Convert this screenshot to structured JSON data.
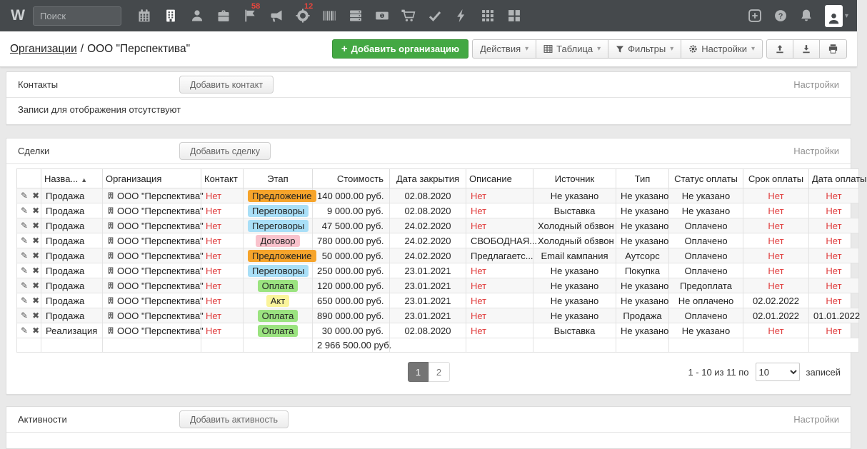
{
  "navbar": {
    "logo": "W",
    "search_placeholder": "Поиск",
    "modules": [
      {
        "name": "calendar",
        "icon": "calendar-icon"
      },
      {
        "name": "organizations",
        "icon": "building-icon",
        "active": true
      },
      {
        "name": "contacts",
        "icon": "person-icon"
      },
      {
        "name": "deals",
        "icon": "briefcase-icon"
      },
      {
        "name": "flags",
        "icon": "flag-icon",
        "badge": "58"
      },
      {
        "name": "marketing",
        "icon": "megaphone-icon"
      },
      {
        "name": "support",
        "icon": "helm-icon",
        "badge": "12"
      },
      {
        "name": "products",
        "icon": "barcode-icon"
      },
      {
        "name": "warehouse",
        "icon": "server-icon"
      },
      {
        "name": "finance",
        "icon": "banknote-icon"
      },
      {
        "name": "orders",
        "icon": "cart-icon"
      },
      {
        "name": "tasks",
        "icon": "check-icon"
      },
      {
        "name": "activity",
        "icon": "bolt-icon"
      },
      {
        "name": "apps",
        "icon": "grid-icon"
      },
      {
        "name": "dashboard",
        "icon": "layout-icon"
      }
    ]
  },
  "toolbar": {
    "breadcrumb": {
      "section": "Организации",
      "separator": "/",
      "current": "ООО \"Перспектива\""
    },
    "add_plus": "+",
    "add_organization_label": "Добавить организацию",
    "menus": [
      {
        "name": "actions-menu",
        "label": "Действия"
      },
      {
        "name": "table-menu",
        "label": "Таблица",
        "icon": "table-icon"
      },
      {
        "name": "filters-menu",
        "label": "Фильтры",
        "icon": "funnel-icon"
      },
      {
        "name": "settings-menu",
        "label": "Настройки",
        "icon": "gear-icon"
      }
    ],
    "icon_buttons": [
      {
        "name": "upload-button",
        "icon": "upload-icon"
      },
      {
        "name": "download-button",
        "icon": "download-icon"
      },
      {
        "name": "print-button",
        "icon": "printer-icon"
      }
    ]
  },
  "contacts": {
    "title": "Контакты",
    "add_button": "Добавить контакт",
    "settings_link": "Настройки",
    "empty_text": "Записи для отображения отсутствуют"
  },
  "deals": {
    "title": "Сделки",
    "add_button": "Добавить сделку",
    "settings_link": "Настройки",
    "table": {
      "columns": [
        {
          "label": ""
        },
        {
          "label": "Назва...",
          "sorted": "asc"
        },
        {
          "label": "Организация"
        },
        {
          "label": "Контакт"
        },
        {
          "label": "Этап"
        },
        {
          "label": "Стоимость"
        },
        {
          "label": "Дата закрытия"
        },
        {
          "label": "Описание"
        },
        {
          "label": "Источник"
        },
        {
          "label": "Тип"
        },
        {
          "label": "Статус оплаты"
        },
        {
          "label": "Срок оплаты"
        },
        {
          "label": "Дата оплаты"
        }
      ],
      "rows": [
        {
          "name": "Продажа",
          "org": "ООО \"Перспектива\"",
          "contact": "Нет",
          "stage": "Предложение",
          "stage_color": "stage_orange",
          "cost": "140 000.00 руб.",
          "close_date": "02.08.2020",
          "description": "Нет",
          "description_empty": true,
          "source": "Не указано",
          "type": "Не указано",
          "payment_status": "Не указано",
          "payment_due": "Нет",
          "payment_due_empty": true,
          "payment_date": "Нет",
          "payment_date_empty": true
        },
        {
          "name": "Продажа",
          "org": "ООО \"Перспектива\"",
          "contact": "Нет",
          "stage": "Переговоры",
          "stage_color": "stage_blue",
          "cost": "9 000.00 руб.",
          "close_date": "02.08.2020",
          "description": "Нет",
          "description_empty": true,
          "source": "Выставка",
          "type": "Не указано",
          "payment_status": "Не указано",
          "payment_due": "Нет",
          "payment_due_empty": true,
          "payment_date": "Нет",
          "payment_date_empty": true
        },
        {
          "name": "Продажа",
          "org": "ООО \"Перспектива\"",
          "contact": "Нет",
          "stage": "Переговоры",
          "stage_color": "stage_blue",
          "cost": "47 500.00 руб.",
          "close_date": "24.02.2020",
          "description": "Нет",
          "description_empty": true,
          "source": "Холодный обзвон",
          "type": "Не указано",
          "payment_status": "Оплачено",
          "payment_due": "Нет",
          "payment_due_empty": true,
          "payment_date": "Нет",
          "payment_date_empty": true
        },
        {
          "name": "Продажа",
          "org": "ООО \"Перспектива\"",
          "contact": "Нет",
          "stage": "Договор",
          "stage_color": "stage_pink",
          "cost": "780 000.00 руб.",
          "close_date": "24.02.2020",
          "description": "СВОБОДНАЯ...",
          "description_empty": false,
          "source": "Холодный обзвон",
          "type": "Не указано",
          "payment_status": "Оплачено",
          "payment_due": "Нет",
          "payment_due_empty": true,
          "payment_date": "Нет",
          "payment_date_empty": true
        },
        {
          "name": "Продажа",
          "org": "ООО \"Перспектива\"",
          "contact": "Нет",
          "stage": "Предложение",
          "stage_color": "stage_orange",
          "cost": "50 000.00 руб.",
          "close_date": "24.02.2020",
          "description": "Предлагаетс...",
          "description_empty": false,
          "source": "Email кампания",
          "type": "Аутсорс",
          "payment_status": "Оплачено",
          "payment_due": "Нет",
          "payment_due_empty": true,
          "payment_date": "Нет",
          "payment_date_empty": true
        },
        {
          "name": "Продажа",
          "org": "ООО \"Перспектива\"",
          "contact": "Нет",
          "stage": "Переговоры",
          "stage_color": "stage_blue",
          "cost": "250 000.00 руб.",
          "close_date": "23.01.2021",
          "description": "Нет",
          "description_empty": true,
          "source": "Не указано",
          "type": "Покупка",
          "payment_status": "Оплачено",
          "payment_due": "Нет",
          "payment_due_empty": true,
          "payment_date": "Нет",
          "payment_date_empty": true
        },
        {
          "name": "Продажа",
          "org": "ООО \"Перспектива\"",
          "contact": "Нет",
          "stage": "Оплата",
          "stage_color": "stage_green",
          "cost": "120 000.00 руб.",
          "close_date": "23.01.2021",
          "description": "Нет",
          "description_empty": true,
          "source": "Не указано",
          "type": "Не указано",
          "payment_status": "Предоплата",
          "payment_due": "Нет",
          "payment_due_empty": true,
          "payment_date": "Нет",
          "payment_date_empty": true
        },
        {
          "name": "Продажа",
          "org": "ООО \"Перспектива\"",
          "contact": "Нет",
          "stage": "Акт",
          "stage_color": "stage_yellow",
          "cost": "650 000.00 руб.",
          "close_date": "23.01.2021",
          "description": "Нет",
          "description_empty": true,
          "source": "Не указано",
          "type": "Не указано",
          "payment_status": "Не оплачено",
          "payment_due": "02.02.2022",
          "payment_due_empty": false,
          "payment_date": "Нет",
          "payment_date_empty": true
        },
        {
          "name": "Продажа",
          "org": "ООО \"Перспектива\"",
          "contact": "Нет",
          "stage": "Оплата",
          "stage_color": "stage_green",
          "cost": "890 000.00 руб.",
          "close_date": "23.01.2021",
          "description": "Нет",
          "description_empty": true,
          "source": "Не указано",
          "type": "Продажа",
          "payment_status": "Оплачено",
          "payment_due": "02.01.2022",
          "payment_due_empty": false,
          "payment_date": "01.01.2022",
          "payment_date_empty": false
        },
        {
          "name": "Реализация",
          "org": "ООО \"Перспектива\"",
          "contact": "Нет",
          "stage": "Оплата",
          "stage_color": "stage_green",
          "cost": "30 000.00 руб.",
          "close_date": "02.08.2020",
          "description": "Нет",
          "description_empty": true,
          "source": "Выставка",
          "type": "Не указано",
          "payment_status": "Не указано",
          "payment_due": "Нет",
          "payment_due_empty": true,
          "payment_date": "Нет",
          "payment_date_empty": true
        }
      ],
      "total": "2 966 500.00 руб."
    },
    "pagination": {
      "pages": [
        {
          "label": "1",
          "active": true
        },
        {
          "label": "2",
          "active": false
        }
      ],
      "summary_prefix": "1 - 10 из 11 по",
      "page_size": "10",
      "summary_suffix": "записей"
    }
  },
  "activities": {
    "title": "Активности",
    "add_button": "Добавить активность",
    "settings_link": "Настройки"
  },
  "colors": {
    "navbar_bg": "#45494c",
    "accent_green": "#43a843",
    "alert_red": "#e03c3c",
    "badge_red": "#e8453c",
    "stage_orange": "#f6a42b",
    "stage_blue": "#a9dff7",
    "stage_pink": "#f9c2cc",
    "stage_green": "#9be380",
    "stage_yellow": "#faf49b"
  }
}
